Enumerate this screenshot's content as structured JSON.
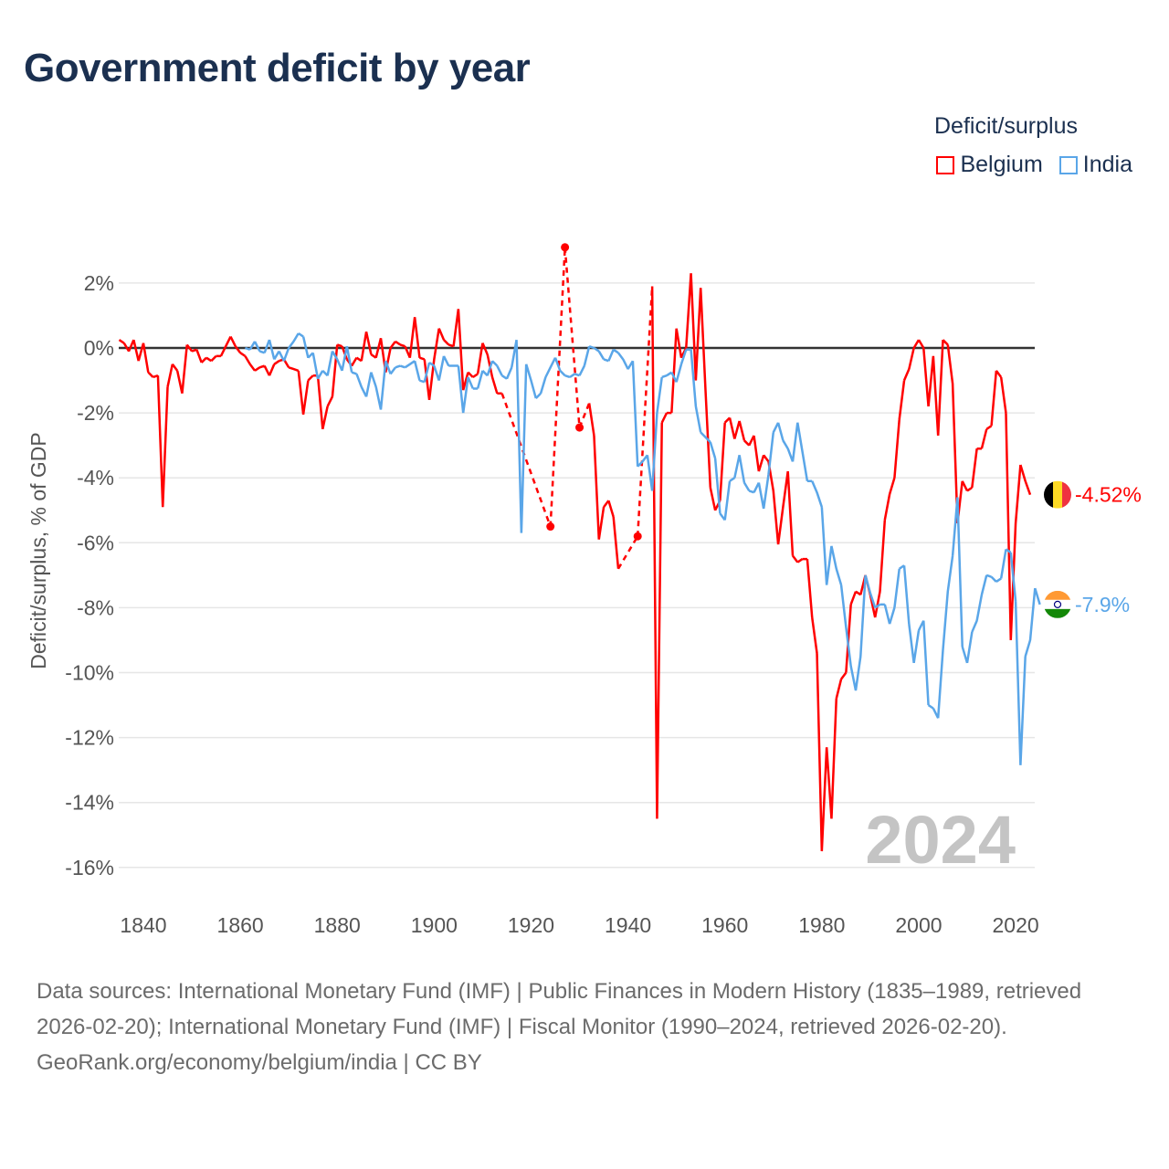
{
  "title": "Government deficit by year",
  "legend": {
    "title": "Deficit/surplus",
    "items": [
      {
        "name": "Belgium",
        "color": "#ff0000"
      },
      {
        "name": "India",
        "color": "#5aa6e8"
      }
    ]
  },
  "year_watermark": "2024",
  "footer": {
    "sources": "Data sources: International Monetary Fund (IMF) | Public Finances in Modern History (1835–1989, retrieved 2026-02-20); International Monetary Fund (IMF) | Fiscal Monitor (1990–2024, retrieved 2026-02-20).",
    "attribution": "GeoRank.org/economy/belgium/india | CC BY"
  },
  "chart_data": {
    "type": "line",
    "title": "Government deficit by year",
    "xlabel": "",
    "ylabel": "Deficit/surplus, % of GDP",
    "xlim": [
      1835,
      2024
    ],
    "ylim": [
      -17,
      3.5
    ],
    "x_ticks": [
      1840,
      1860,
      1880,
      1900,
      1920,
      1940,
      1960,
      1980,
      2000,
      2020
    ],
    "x_tick_labels": [
      "1840",
      "1860",
      "1880",
      "1900",
      "1920",
      "1940",
      "1960",
      "1980",
      "2000",
      "2020"
    ],
    "y_ticks": [
      2,
      0,
      -2,
      -4,
      -6,
      -8,
      -10,
      -12,
      -14,
      -16
    ],
    "y_tick_labels": [
      "2%",
      "0%",
      "-2%",
      "-4%",
      "-6%",
      "-8%",
      "-10%",
      "-12%",
      "-14%",
      "-16%"
    ],
    "grid": true,
    "legend_position": "top-right",
    "series": [
      {
        "name": "Belgium",
        "color": "#ff0000",
        "end_label": "-4.52%",
        "start_year": 1835,
        "values": [
          0.25,
          0.15,
          -0.1,
          0.25,
          -0.4,
          0.15,
          -0.75,
          -0.9,
          -0.85,
          -4.9,
          -1.2,
          -0.5,
          -0.7,
          -1.4,
          0.1,
          -0.1,
          -0.05,
          -0.45,
          -0.3,
          -0.4,
          -0.25,
          -0.25,
          0.05,
          0.35,
          0.05,
          -0.15,
          -0.25,
          -0.5,
          -0.7,
          -0.6,
          -0.55,
          -0.85,
          -0.5,
          -0.4,
          -0.35,
          -0.6,
          -0.65,
          -0.7,
          -2.05,
          -1.0,
          -0.85,
          -0.85,
          -2.5,
          -1.8,
          -1.5,
          0.1,
          0.05,
          -0.35,
          -0.55,
          -0.3,
          -0.4,
          0.5,
          -0.2,
          -0.3,
          0.3,
          -0.75,
          0.0,
          0.2,
          0.1,
          0.05,
          -0.3,
          0.95,
          -0.3,
          -0.35,
          -1.6,
          -0.35,
          0.6,
          0.25,
          0.1,
          0.05,
          1.2,
          -1.3,
          -0.75,
          -0.9,
          -0.8,
          0.15,
          -0.2,
          -0.9,
          -1.4,
          -1.4,
          null,
          null,
          null,
          null,
          null,
          null,
          null,
          null,
          null,
          -5.5,
          null,
          null,
          3.1,
          null,
          null,
          -2.45,
          null,
          -1.7,
          -2.7,
          -5.9,
          -4.9,
          -4.7,
          -5.2,
          -6.8,
          null,
          null,
          null,
          -5.8,
          null,
          null,
          1.9,
          -14.5,
          -2.3,
          -2.0,
          -2.0,
          0.6,
          -0.3,
          0.0,
          2.3,
          -1.0,
          1.85,
          -1.3,
          -4.3,
          -5.0,
          -4.7,
          -2.3,
          -2.15,
          -2.8,
          -2.25,
          -2.85,
          -3.0,
          -2.7,
          -3.8,
          -3.3,
          -3.5,
          -4.4,
          -6.05,
          -4.9,
          -3.8,
          -6.4,
          -6.6,
          -6.5,
          -6.5,
          -8.3,
          -9.4,
          -15.5,
          -12.3,
          -14.5,
          -10.8,
          -10.2,
          -10.0,
          -7.9,
          -7.5,
          -7.6,
          -7.0,
          -7.6,
          -8.3,
          -7.5,
          -5.3,
          -4.5,
          -4.0,
          -2.2,
          -1.0,
          -0.65,
          0.0,
          0.25,
          0.0,
          -1.8,
          -0.25,
          -2.7,
          0.25,
          0.1,
          -1.1,
          -5.4,
          -4.1,
          -4.4,
          -4.3,
          -3.1,
          -3.1,
          -2.5,
          -2.4,
          -0.7,
          -0.9,
          -2.0,
          -9.0,
          -5.4,
          -3.6,
          -4.1,
          -4.52
        ]
      },
      {
        "name": "India",
        "color": "#5aa6e8",
        "end_label": "-7.9%",
        "start_year": 1861,
        "values": [
          0.0,
          -0.05,
          0.2,
          -0.1,
          -0.15,
          0.25,
          -0.35,
          -0.1,
          -0.4,
          0.0,
          0.2,
          0.45,
          0.35,
          -0.3,
          -0.15,
          -0.95,
          -0.7,
          -0.85,
          -0.1,
          -0.35,
          -0.7,
          0.05,
          -0.75,
          -0.8,
          -1.2,
          -1.5,
          -0.75,
          -1.2,
          -1.9,
          -0.4,
          -0.8,
          -0.6,
          -0.55,
          -0.6,
          -0.5,
          -0.4,
          -1.0,
          -1.05,
          -0.45,
          -0.55,
          -1.0,
          -0.25,
          -0.55,
          -0.55,
          -0.55,
          -2.0,
          -0.9,
          -1.25,
          -1.25,
          -0.7,
          -0.85,
          -0.4,
          -0.55,
          -0.85,
          -0.95,
          -0.6,
          0.25,
          -5.7,
          -0.5,
          -1.0,
          -1.55,
          -1.4,
          -0.9,
          -0.6,
          -0.3,
          -0.7,
          -0.85,
          -0.9,
          -0.8,
          -0.85,
          -0.55,
          0.05,
          0.0,
          -0.1,
          -0.35,
          -0.4,
          -0.05,
          -0.15,
          -0.35,
          -0.65,
          -0.4,
          -3.65,
          -3.5,
          -3.3,
          -4.4,
          -2.0,
          -0.9,
          -0.85,
          -0.75,
          -1.05,
          -0.5,
          -0.05,
          -0.05,
          -1.8,
          -2.6,
          -2.75,
          -2.9,
          -3.4,
          -5.1,
          -5.3,
          -4.1,
          -4.0,
          -3.3,
          -4.15,
          -4.4,
          -4.45,
          -4.15,
          -4.95,
          -3.9,
          -2.6,
          -2.3,
          -2.85,
          -3.1,
          -3.5,
          -2.3,
          -3.2,
          -4.1,
          -4.1,
          -4.45,
          -4.9,
          -7.3,
          -6.1,
          -6.8,
          -7.3,
          -8.6,
          -9.8,
          -10.55,
          -9.5,
          -7.0,
          -7.55,
          -8.0,
          -7.9,
          -7.9,
          -8.5,
          -8.0,
          -6.8,
          -6.7,
          -8.5,
          -9.7,
          -8.7,
          -8.4,
          -11.0,
          -11.1,
          -11.4,
          -9.3,
          -7.5,
          -6.4,
          -4.6,
          -9.2,
          -9.7,
          -8.75,
          -8.4,
          -7.6,
          -7.0,
          -7.05,
          -7.2,
          -7.1,
          -6.2,
          -6.3,
          -7.8,
          -12.85,
          -9.5,
          -9.0,
          -7.4,
          -7.9
        ]
      }
    ]
  }
}
